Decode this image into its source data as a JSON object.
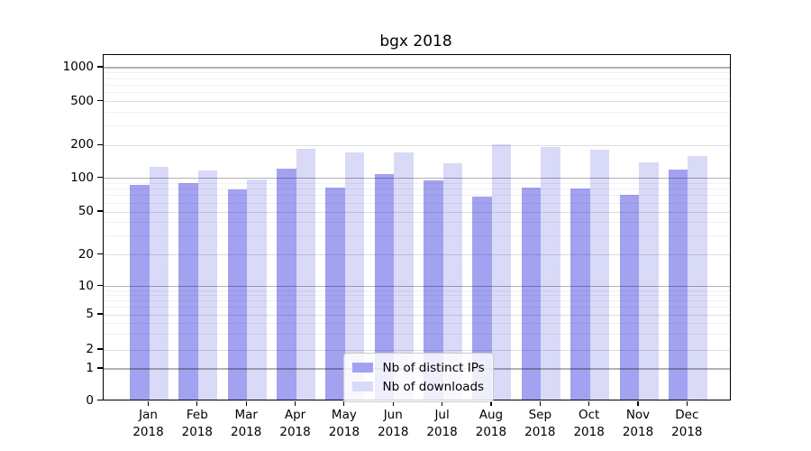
{
  "chart_data": {
    "type": "bar",
    "title": "bgx 2018",
    "categories": [
      "Jan",
      "Feb",
      "Mar",
      "Apr",
      "May",
      "Jun",
      "Jul",
      "Aug",
      "Sep",
      "Oct",
      "Nov",
      "Dec"
    ],
    "category_year": "2018",
    "series": [
      {
        "name": "Nb of distinct IPs",
        "color": "#a2a2f1",
        "values": [
          87,
          90,
          79,
          122,
          83,
          109,
          96,
          68,
          83,
          81,
          71,
          120
        ]
      },
      {
        "name": "Nb of downloads",
        "color": "#d9d9f8",
        "values": [
          128,
          118,
          98,
          186,
          174,
          174,
          137,
          206,
          193,
          182,
          141,
          159
        ]
      }
    ],
    "yscale": "log-like (symlog with 0 baseline)",
    "yticks": [
      1000,
      500,
      200,
      100,
      50,
      20,
      10,
      5,
      2,
      1,
      0
    ],
    "ylim": [
      0,
      1300
    ],
    "grid": true,
    "legend_position": "lower center"
  }
}
